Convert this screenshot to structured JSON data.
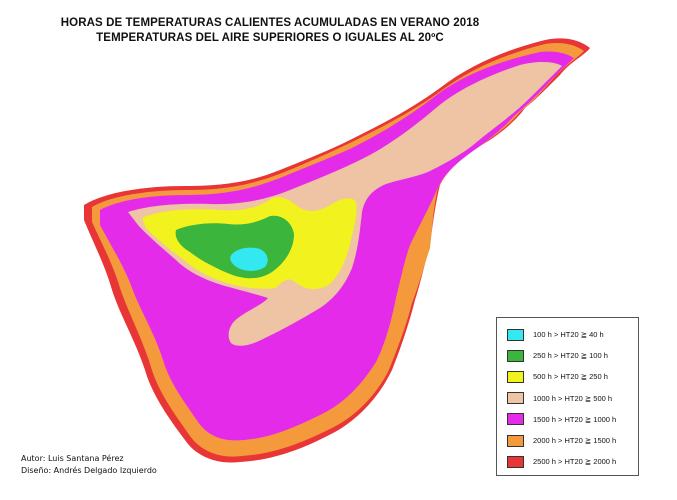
{
  "title": {
    "line1": "HORAS DE TEMPERATURAS CALIENTES ACUMULADAS EN VERANO 2018",
    "line2": "TEMPERATURAS DEL AIRE SUPERIORES O IGUALES AL 20ºC"
  },
  "legend": {
    "items": [
      {
        "label": "100 h > HT20 ≧ 40 h",
        "color": "#33e8f0"
      },
      {
        "label": "250 h > HT20 ≧ 100 h",
        "color": "#3bb53b"
      },
      {
        "label": "500 h > HT20 ≧ 250 h",
        "color": "#f2f21e"
      },
      {
        "label": "1000 h > HT20 ≧ 500 h",
        "color": "#eec4a4"
      },
      {
        "label": "1500 h > HT20 ≧ 1000 h",
        "color": "#e52bea"
      },
      {
        "label": "2000 h > HT20 ≧ 1500 h",
        "color": "#f49a3c"
      },
      {
        "label": "2500 h > HT20 ≧ 2000 h",
        "color": "#e83535"
      }
    ]
  },
  "credits": {
    "author": "Autor: Luis Santana Pérez",
    "design": "Diseño: Andrés Delgado Izquierdo"
  }
}
